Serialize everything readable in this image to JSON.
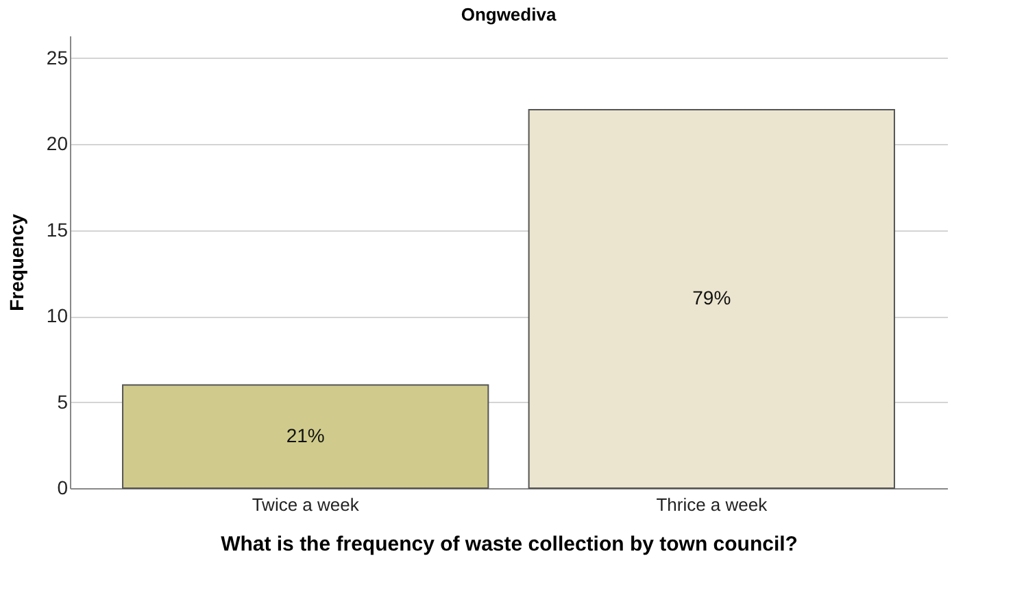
{
  "chart_data": {
    "type": "bar",
    "title": "Ongwediva",
    "xlabel": "What is the frequency of waste collection by town council?",
    "ylabel": "Frequency",
    "categories": [
      "Twice a week",
      "Thrice a week"
    ],
    "values": [
      6,
      22
    ],
    "colors": [
      "#d0cb8c",
      "#ebe4cf"
    ],
    "annotations": [
      "21%",
      "79%"
    ],
    "ylim": [
      0,
      26.3
    ],
    "yticks": [
      0,
      5,
      10,
      15,
      20,
      25
    ],
    "grid": "y"
  }
}
